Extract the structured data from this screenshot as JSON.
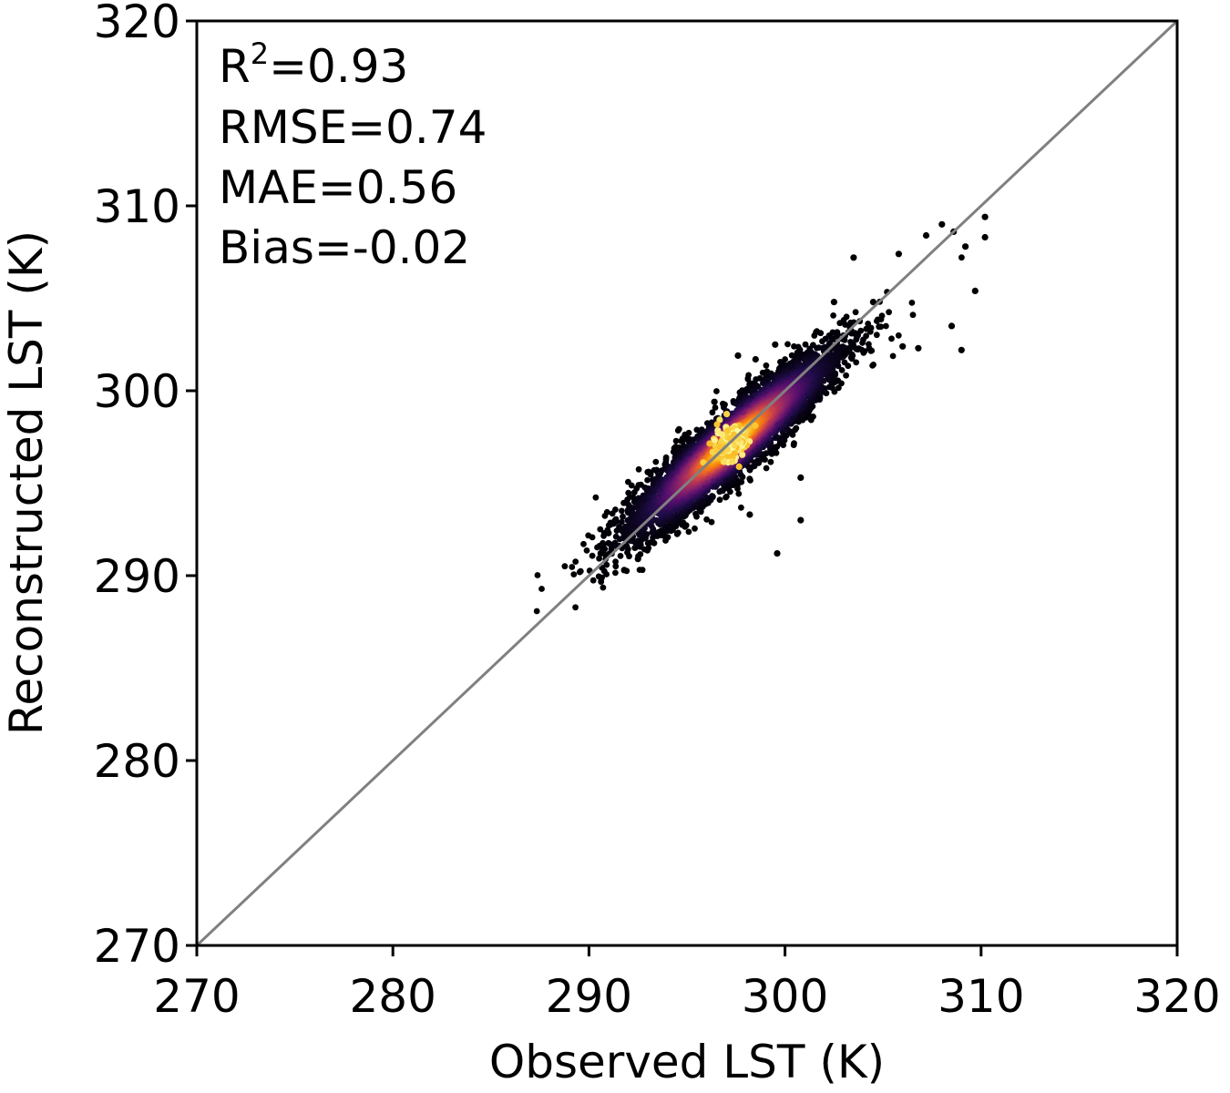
{
  "chart_data": {
    "type": "scatter",
    "title": "",
    "xlabel": "Observed LST (K)",
    "ylabel": "Reconstructed LST (K)",
    "xlim": [
      270,
      320
    ],
    "ylim": [
      270,
      320
    ],
    "xticks": [
      "270",
      "280",
      "290",
      "300",
      "310",
      "320"
    ],
    "yticks": [
      "270",
      "280",
      "290",
      "300",
      "310",
      "320"
    ],
    "grid": false,
    "reference_line": {
      "type": "1:1",
      "color": "#808080"
    },
    "colormap": "inferno (point density)",
    "annotations": {
      "r2_base": "R",
      "r2_sup": "2",
      "r2_value": "=0.93",
      "rmse": "RMSE=0.74",
      "mae": "MAE=0.56",
      "bias": "Bias=-0.02"
    },
    "density_center": {
      "x": 297.3,
      "y": 297.2
    },
    "outliers": [
      {
        "x": 308.0,
        "y": 309.0
      },
      {
        "x": 308.6,
        "y": 308.6
      },
      {
        "x": 309.2,
        "y": 307.8
      },
      {
        "x": 309.7,
        "y": 305.4
      },
      {
        "x": 309.0,
        "y": 302.2
      },
      {
        "x": 308.5,
        "y": 303.5
      },
      {
        "x": 306.0,
        "y": 302.4
      },
      {
        "x": 306.8,
        "y": 302.3
      },
      {
        "x": 304.5,
        "y": 304.8
      },
      {
        "x": 303.0,
        "y": 302.0
      },
      {
        "x": 300.8,
        "y": 295.3
      },
      {
        "x": 300.8,
        "y": 293.0
      },
      {
        "x": 299.6,
        "y": 291.2
      },
      {
        "x": 298.2,
        "y": 293.3
      },
      {
        "x": 293.8,
        "y": 292.3
      },
      {
        "x": 292.5,
        "y": 290.9
      },
      {
        "x": 291.8,
        "y": 290.3
      },
      {
        "x": 290.6,
        "y": 291.2
      },
      {
        "x": 291.0,
        "y": 292.3
      },
      {
        "x": 296.4,
        "y": 299.4
      },
      {
        "x": 297.6,
        "y": 301.9
      },
      {
        "x": 299.5,
        "y": 302.5
      },
      {
        "x": 302.5,
        "y": 304.8
      },
      {
        "x": 303.5,
        "y": 307.2
      },
      {
        "x": 305.8,
        "y": 307.4
      },
      {
        "x": 310.2,
        "y": 309.4
      },
      {
        "x": 310.2,
        "y": 308.3
      },
      {
        "x": 307.2,
        "y": 308.4
      },
      {
        "x": 298.5,
        "y": 301.7
      },
      {
        "x": 293.0,
        "y": 295.6
      }
    ]
  }
}
